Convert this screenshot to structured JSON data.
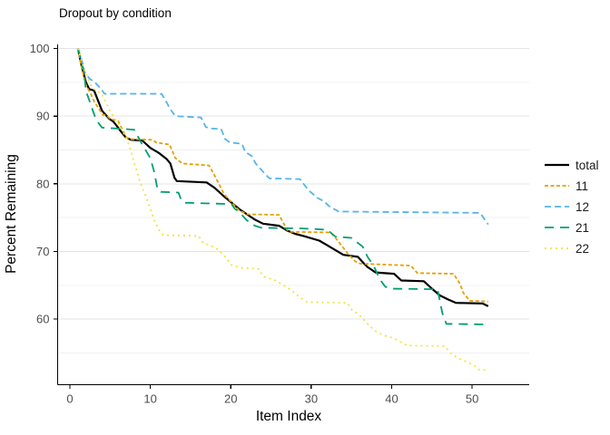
{
  "chart_data": {
    "type": "line",
    "title": "Dropout by condition",
    "xlabel": "Item Index",
    "ylabel": "Percent Remaining",
    "x_ticks": [
      0,
      10,
      20,
      30,
      40,
      50
    ],
    "y_ticks": [
      60,
      70,
      80,
      90,
      100
    ],
    "y_minor_ticks": [
      55,
      65,
      75,
      85,
      95
    ],
    "xlim": [
      -1.52,
      57.1
    ],
    "ylim": [
      50.3,
      100.6
    ],
    "grid": "horizontal-major-and-minor",
    "legend_position": "right-middle",
    "panel_background": "#ffffff",
    "grid_major_color": "#e4e4e4",
    "grid_minor_color": "#f0f0f0",
    "axis_color": "#000000",
    "series": [
      {
        "name": "total",
        "color": "#000000",
        "dash": "solid",
        "width": 2.2,
        "points": [
          [
            1,
            100
          ],
          [
            1.5,
            97.2
          ],
          [
            2,
            95
          ],
          [
            2.4,
            94
          ],
          [
            3,
            93.8
          ],
          [
            3.4,
            92.6
          ],
          [
            4,
            90.8
          ],
          [
            4.9,
            89.6
          ],
          [
            5.4,
            89.2
          ],
          [
            6,
            88.3
          ],
          [
            6.5,
            87.5
          ],
          [
            7,
            86.8
          ],
          [
            7.6,
            86.5
          ],
          [
            9,
            86.4
          ],
          [
            10,
            85.3
          ],
          [
            11,
            84.6
          ],
          [
            12,
            83.7
          ],
          [
            12.5,
            83
          ],
          [
            13,
            80.9
          ],
          [
            13.3,
            80.4
          ],
          [
            17,
            80.2
          ],
          [
            18,
            79.4
          ],
          [
            19,
            78.3
          ],
          [
            20,
            77.3
          ],
          [
            21,
            76.3
          ],
          [
            22,
            75.5
          ],
          [
            23,
            74.7
          ],
          [
            24,
            74.1
          ],
          [
            26,
            73.8
          ],
          [
            27,
            73.1
          ],
          [
            28,
            72.6
          ],
          [
            29,
            72.3
          ],
          [
            31,
            71.6
          ],
          [
            32,
            70.9
          ],
          [
            33,
            70.2
          ],
          [
            34,
            69.5
          ],
          [
            35.8,
            69.2
          ],
          [
            36.5,
            68.3
          ],
          [
            37,
            67.7
          ],
          [
            38,
            66.9
          ],
          [
            40.3,
            66.7
          ],
          [
            41.2,
            65.7
          ],
          [
            44,
            65.6
          ],
          [
            45,
            64.5
          ],
          [
            46,
            63.5
          ],
          [
            47,
            62.9
          ],
          [
            48,
            62.4
          ],
          [
            51.3,
            62.3
          ],
          [
            52,
            61.9
          ]
        ]
      },
      {
        "name": "11",
        "color": "#E69F00",
        "dash": "4 2.5",
        "width": 1.8,
        "points": [
          [
            1,
            100
          ],
          [
            1.5,
            96.9
          ],
          [
            2,
            94.6
          ],
          [
            2.6,
            93.3
          ],
          [
            3,
            92.2
          ],
          [
            3.7,
            90.9
          ],
          [
            4.1,
            90.2
          ],
          [
            4.6,
            90.1
          ],
          [
            5,
            89.6
          ],
          [
            6,
            89.3
          ],
          [
            7,
            86.9
          ],
          [
            7.3,
            86.6
          ],
          [
            10.3,
            86.5
          ],
          [
            10.7,
            86.1
          ],
          [
            12.4,
            85.8
          ],
          [
            13.1,
            83.8
          ],
          [
            14,
            83
          ],
          [
            17.3,
            82.7
          ],
          [
            18,
            81.2
          ],
          [
            19.2,
            78.4
          ],
          [
            20,
            77.4
          ],
          [
            21,
            76.1
          ],
          [
            22,
            75.5
          ],
          [
            26,
            75.4
          ],
          [
            27,
            73.2
          ],
          [
            27.4,
            72.9
          ],
          [
            32.4,
            72.8
          ],
          [
            33.1,
            71.9
          ],
          [
            34.6,
            69.6
          ],
          [
            35.5,
            68.5
          ],
          [
            36.1,
            68.2
          ],
          [
            42.4,
            67.9
          ],
          [
            43.2,
            66.8
          ],
          [
            47.7,
            66.7
          ],
          [
            48.5,
            65.2
          ],
          [
            48.9,
            63.9
          ],
          [
            49.7,
            62.7
          ],
          [
            52,
            62.6
          ]
        ]
      },
      {
        "name": "12",
        "color": "#56B4E9",
        "dash": "7 4",
        "width": 1.8,
        "points": [
          [
            1,
            100
          ],
          [
            1.5,
            98.2
          ],
          [
            1.8,
            96.6
          ],
          [
            2.4,
            95.6
          ],
          [
            3.2,
            94.9
          ],
          [
            3.9,
            94
          ],
          [
            4.3,
            93.3
          ],
          [
            11.4,
            93.3
          ],
          [
            12,
            92.1
          ],
          [
            12.5,
            91
          ],
          [
            13.1,
            90
          ],
          [
            16.3,
            89.8
          ],
          [
            16.9,
            88.4
          ],
          [
            17.3,
            88.2
          ],
          [
            18.8,
            88.1
          ],
          [
            19.3,
            86.6
          ],
          [
            19.9,
            86.1
          ],
          [
            21.4,
            85.9
          ],
          [
            21.8,
            84.7
          ],
          [
            22.6,
            84.1
          ],
          [
            23.1,
            83
          ],
          [
            24.3,
            81.4
          ],
          [
            24.8,
            80.8
          ],
          [
            28.6,
            80.7
          ],
          [
            29.1,
            79.9
          ],
          [
            29.7,
            79
          ],
          [
            30.8,
            77.9
          ],
          [
            31.6,
            77.4
          ],
          [
            32.2,
            76.7
          ],
          [
            33.4,
            75.9
          ],
          [
            51,
            75.7
          ],
          [
            52,
            74
          ]
        ]
      },
      {
        "name": "21",
        "color": "#009E73",
        "dash": "10 7",
        "width": 1.8,
        "points": [
          [
            1,
            100
          ],
          [
            1.4,
            98.4
          ],
          [
            1.8,
            96.2
          ],
          [
            2,
            93.7
          ],
          [
            2.4,
            92.4
          ],
          [
            2.8,
            91
          ],
          [
            3.2,
            89.7
          ],
          [
            3.6,
            88.9
          ],
          [
            4,
            88.3
          ],
          [
            8,
            88
          ],
          [
            9,
            85.8
          ],
          [
            10,
            83.8
          ],
          [
            10.5,
            81.7
          ],
          [
            10.9,
            79.1
          ],
          [
            11.3,
            78.8
          ],
          [
            13.5,
            78.7
          ],
          [
            13.9,
            77.4
          ],
          [
            14.2,
            77.2
          ],
          [
            20.1,
            77
          ],
          [
            20.5,
            76.3
          ],
          [
            21,
            75.9
          ],
          [
            22,
            74.6
          ],
          [
            23,
            73.8
          ],
          [
            23.8,
            73.5
          ],
          [
            29,
            73.4
          ],
          [
            32,
            73.2
          ],
          [
            33,
            72.2
          ],
          [
            35,
            72
          ],
          [
            36.4,
            70.7
          ],
          [
            37,
            69.2
          ],
          [
            37.8,
            67.8
          ],
          [
            38.5,
            65.9
          ],
          [
            39.2,
            64.8
          ],
          [
            39.8,
            64.5
          ],
          [
            45.7,
            64.4
          ],
          [
            46.3,
            60.9
          ],
          [
            46.8,
            59.3
          ],
          [
            52,
            59.2
          ]
        ]
      },
      {
        "name": "22",
        "color": "#F0E442",
        "dash": "2 4",
        "width": 1.8,
        "points": [
          [
            1,
            100
          ],
          [
            1.7,
            97.3
          ],
          [
            2.2,
            95.7
          ],
          [
            2.8,
            94.2
          ],
          [
            3.4,
            93.6
          ],
          [
            3.9,
            93.4
          ],
          [
            4.5,
            92
          ],
          [
            5,
            90.7
          ],
          [
            6,
            88.9
          ],
          [
            7,
            86.8
          ],
          [
            7.5,
            85.2
          ],
          [
            8,
            83.1
          ],
          [
            8.8,
            80
          ],
          [
            9.6,
            77.7
          ],
          [
            10.3,
            75.2
          ],
          [
            11,
            73.3
          ],
          [
            11.6,
            72.4
          ],
          [
            16,
            72.3
          ],
          [
            16.6,
            71.2
          ],
          [
            17.3,
            71
          ],
          [
            18.4,
            70.3
          ],
          [
            19.3,
            69.2
          ],
          [
            20.1,
            68
          ],
          [
            21.2,
            67.6
          ],
          [
            23.5,
            67.4
          ],
          [
            24,
            66.3
          ],
          [
            25.2,
            65.9
          ],
          [
            26.3,
            65.2
          ],
          [
            27.5,
            64.3
          ],
          [
            28.5,
            63.3
          ],
          [
            29.5,
            62.5
          ],
          [
            34.5,
            62.4
          ],
          [
            35.1,
            61.3
          ],
          [
            35.9,
            60.7
          ],
          [
            37,
            59.3
          ],
          [
            37.9,
            58.3
          ],
          [
            39,
            57.6
          ],
          [
            40.2,
            57.2
          ],
          [
            41.9,
            56.1
          ],
          [
            46.6,
            56
          ],
          [
            47.4,
            54.9
          ],
          [
            48.3,
            54.2
          ],
          [
            48.9,
            53.9
          ],
          [
            50.2,
            53.2
          ],
          [
            50.9,
            52.5
          ],
          [
            52,
            52.5
          ]
        ]
      }
    ],
    "legend_entries": [
      "total",
      "11",
      "12",
      "21",
      "22"
    ]
  }
}
